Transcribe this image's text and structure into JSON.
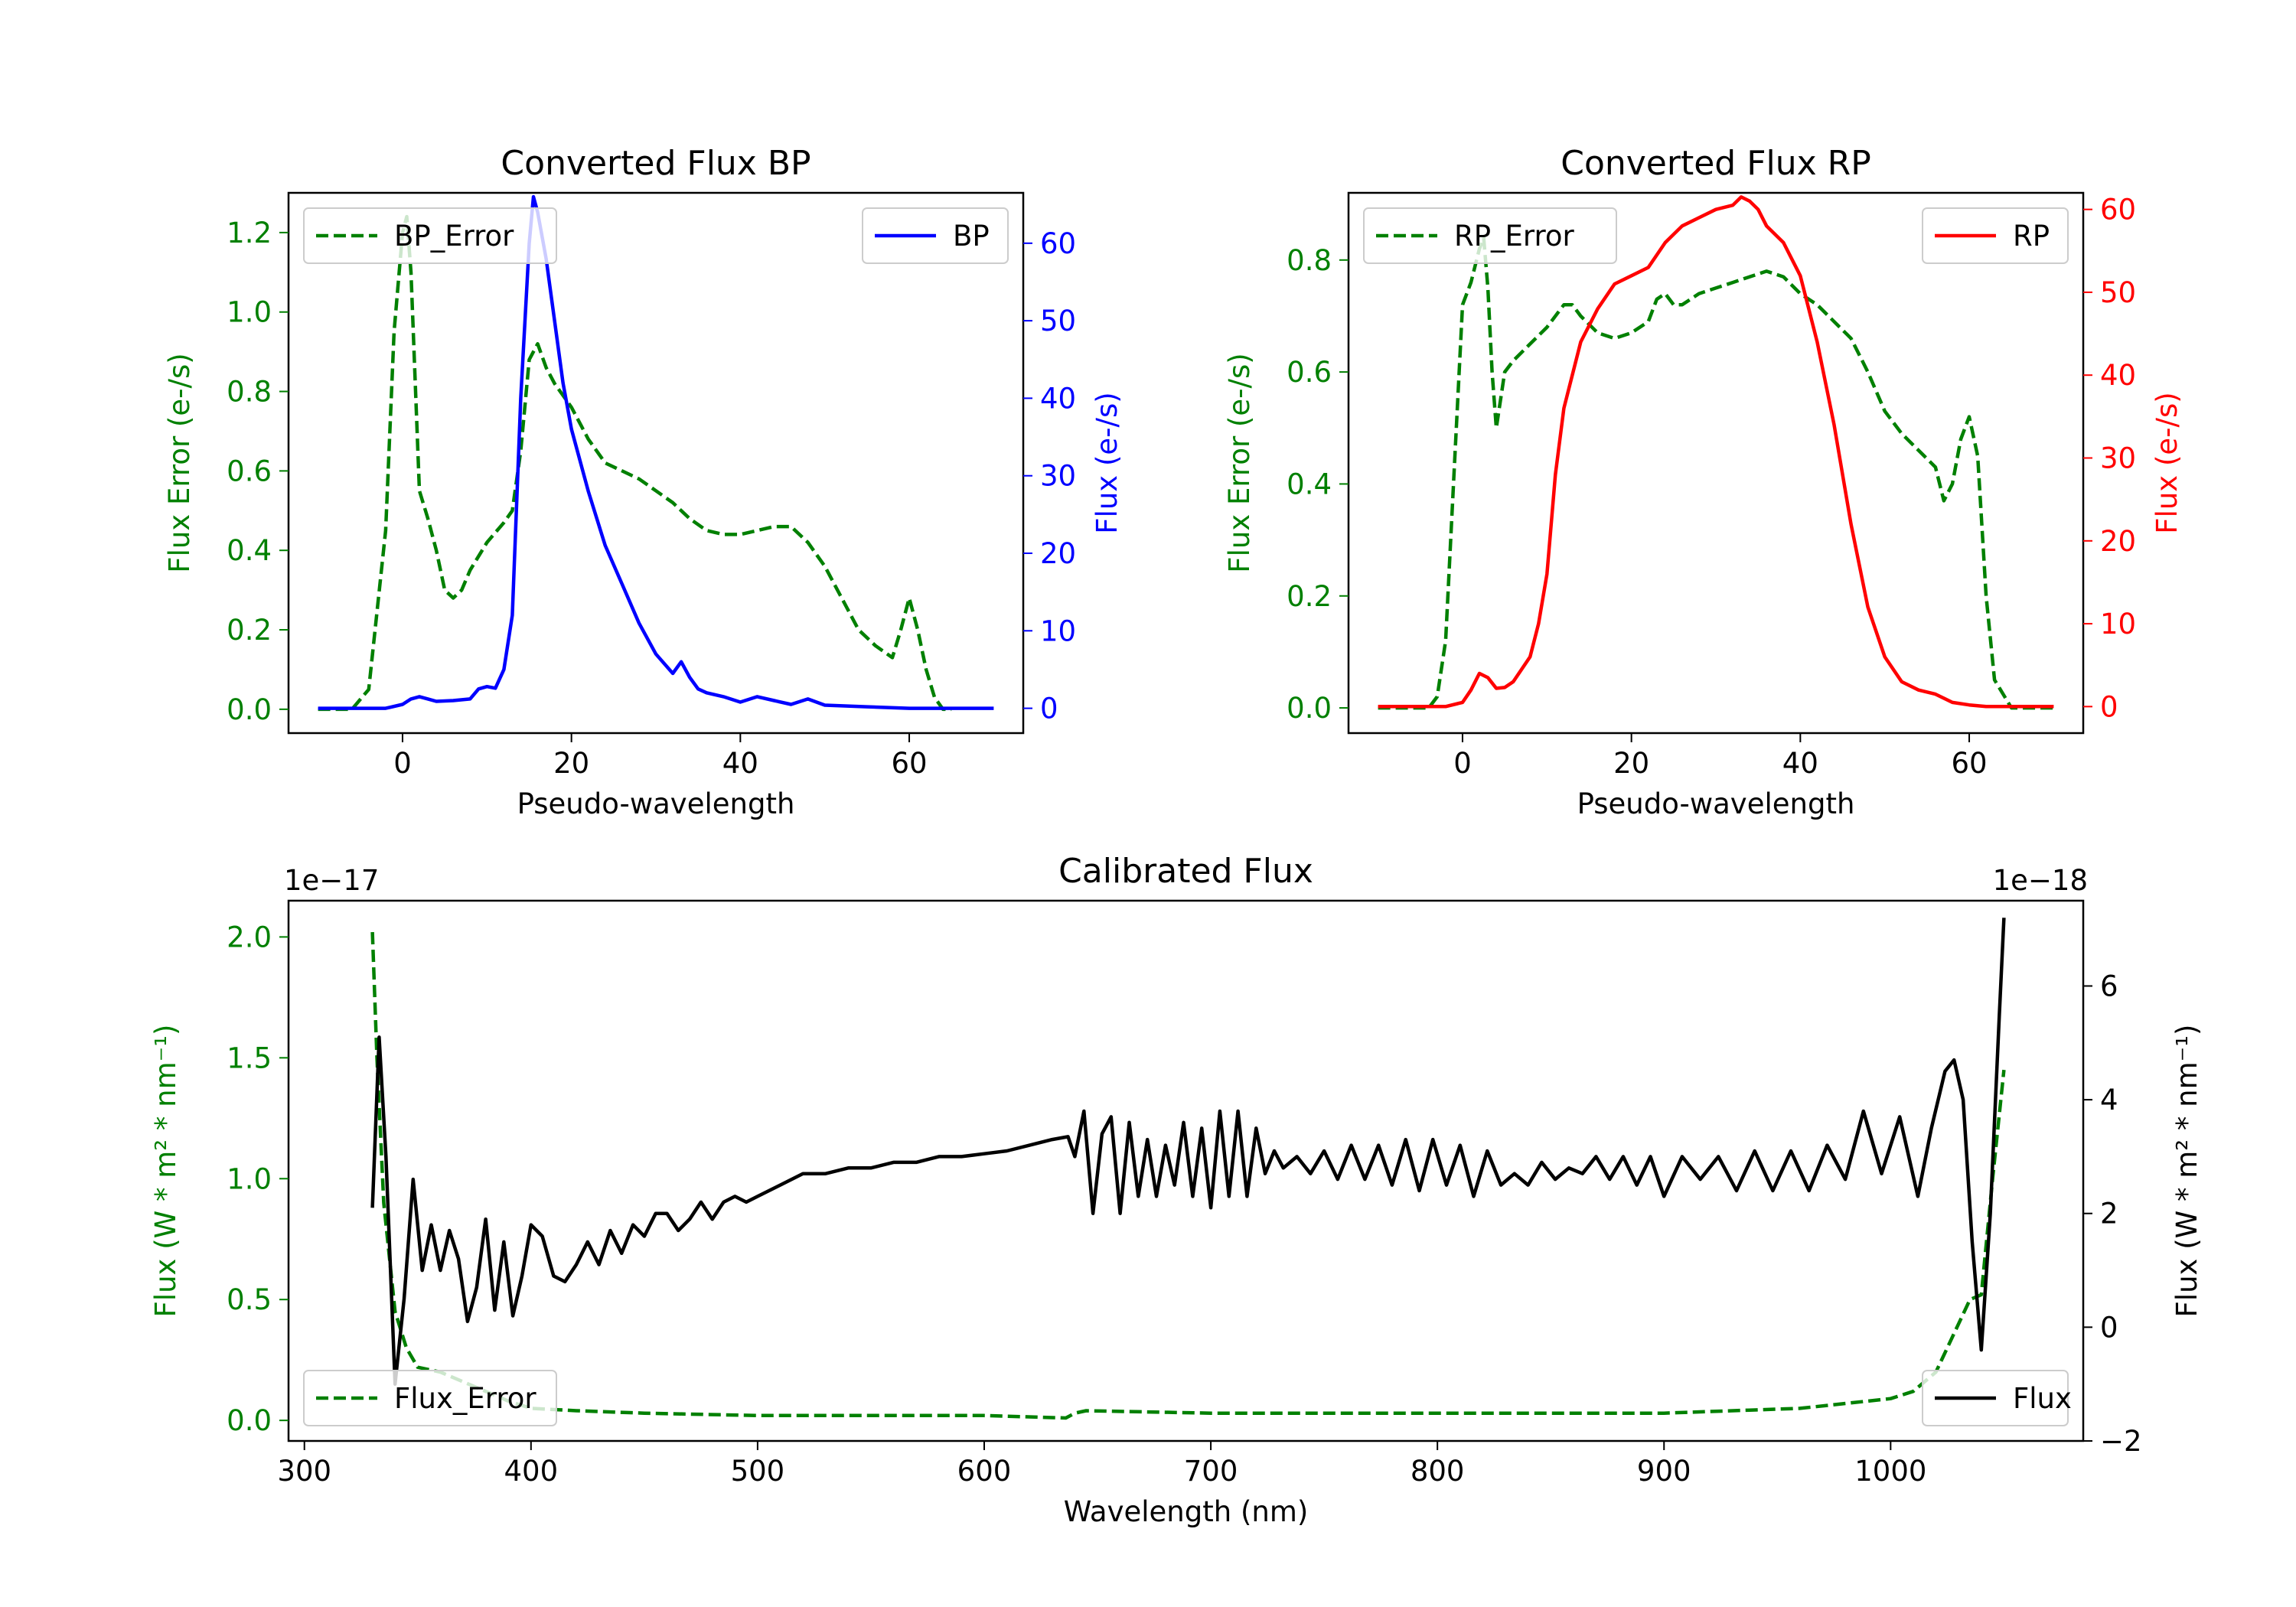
{
  "chart_data": [
    {
      "id": "bp",
      "type": "line",
      "title": "Converted Flux BP",
      "xlabel": "Pseudo-wavelength",
      "ylabel_left": "Flux Error (e-/s)",
      "ylabel_right": "Flux (e-/s)",
      "xlim": [
        -13.5,
        73.5
      ],
      "ylim_left": [
        -0.06,
        1.3
      ],
      "ylim_right": [
        -3.2,
        66.5
      ],
      "xticks": [
        0,
        20,
        40,
        60
      ],
      "yticks_left": [
        0.0,
        0.2,
        0.4,
        0.6,
        0.8,
        1.0,
        1.2
      ],
      "yticks_left_labels": [
        "0.0",
        "0.2",
        "0.4",
        "0.6",
        "0.8",
        "1.0",
        "1.2"
      ],
      "yticks_right": [
        0,
        10,
        20,
        30,
        40,
        50,
        60
      ],
      "colors": {
        "left_axis": "#008000",
        "right_axis": "#0000ff"
      },
      "legend_left": "upper-left",
      "legend_right": "upper-right",
      "series": [
        {
          "name": "BP_Error",
          "axis": "left",
          "color": "#008000",
          "style": "dashed",
          "x": [
            -10,
            -6,
            -4,
            -2,
            -1,
            0,
            0.5,
            1,
            2,
            3,
            4,
            5,
            6,
            7,
            8,
            10,
            12,
            13,
            14,
            15,
            16,
            17,
            18,
            20,
            22,
            24,
            26,
            28,
            30,
            32,
            34,
            36,
            38,
            40,
            42,
            44,
            46,
            48,
            50,
            52,
            54,
            56,
            58,
            59,
            60,
            61,
            62,
            63,
            64,
            65
          ],
          "y": [
            0.0,
            0.0,
            0.05,
            0.45,
            0.95,
            1.2,
            1.24,
            1.1,
            0.55,
            0.48,
            0.4,
            0.3,
            0.28,
            0.3,
            0.35,
            0.42,
            0.47,
            0.5,
            0.65,
            0.88,
            0.92,
            0.86,
            0.82,
            0.76,
            0.68,
            0.62,
            0.6,
            0.58,
            0.55,
            0.52,
            0.48,
            0.45,
            0.44,
            0.44,
            0.45,
            0.46,
            0.46,
            0.42,
            0.36,
            0.28,
            0.2,
            0.16,
            0.13,
            0.2,
            0.28,
            0.2,
            0.1,
            0.03,
            0.0,
            0.0
          ]
        },
        {
          "name": "BP",
          "axis": "right",
          "color": "#0000ff",
          "style": "solid",
          "x": [
            -10,
            -4,
            -2,
            0,
            1,
            2,
            3,
            4,
            6,
            8,
            9,
            10,
            11,
            12,
            13,
            14,
            15,
            15.5,
            16,
            17,
            18,
            19,
            20,
            22,
            24,
            26,
            28,
            30,
            32,
            33,
            34,
            35,
            36,
            38,
            40,
            42,
            44,
            46,
            48,
            50,
            55,
            60,
            65,
            70
          ],
          "y": [
            0,
            0,
            0,
            0.5,
            1.2,
            1.5,
            1.2,
            0.9,
            1.0,
            1.2,
            2.5,
            2.8,
            2.6,
            5.0,
            12.0,
            40.0,
            60.0,
            66.0,
            64.0,
            58.0,
            50.0,
            42.0,
            36.0,
            28.0,
            21.0,
            16.0,
            11.0,
            7.0,
            4.5,
            6.0,
            4.0,
            2.5,
            2.0,
            1.5,
            0.8,
            1.5,
            1.0,
            0.5,
            1.2,
            0.4,
            0.2,
            0,
            0,
            0
          ]
        }
      ]
    },
    {
      "id": "rp",
      "type": "line",
      "title": "Converted Flux RP",
      "xlabel": "Pseudo-wavelength",
      "ylabel_left": "Flux Error (e-/s)",
      "ylabel_right": "Flux (e-/s)",
      "xlim": [
        -13.5,
        73.5
      ],
      "ylim_left": [
        -0.045,
        0.92
      ],
      "ylim_right": [
        -3.2,
        62.0
      ],
      "xticks": [
        0,
        20,
        40,
        60
      ],
      "yticks_left": [
        0.0,
        0.2,
        0.4,
        0.6,
        0.8
      ],
      "yticks_left_labels": [
        "0.0",
        "0.2",
        "0.4",
        "0.6",
        "0.8"
      ],
      "yticks_right": [
        0,
        10,
        20,
        30,
        40,
        50,
        60
      ],
      "colors": {
        "left_axis": "#008000",
        "right_axis": "#ff0000"
      },
      "legend_left": "upper-left",
      "legend_right": "upper-right",
      "series": [
        {
          "name": "RP_Error",
          "axis": "left",
          "color": "#008000",
          "style": "dashed",
          "x": [
            -10,
            -4,
            -3,
            -2,
            -1,
            0,
            1,
            2,
            2.5,
            3,
            3.5,
            4,
            5,
            6,
            8,
            10,
            12,
            13,
            14,
            16,
            18,
            20,
            22,
            23,
            24,
            25,
            26,
            28,
            30,
            32,
            34,
            36,
            38,
            40,
            42,
            44,
            46,
            48,
            50,
            52,
            54,
            56,
            57,
            58,
            59,
            60,
            61,
            62,
            63,
            65,
            70
          ],
          "y": [
            0.0,
            0.0,
            0.02,
            0.12,
            0.42,
            0.72,
            0.76,
            0.82,
            0.84,
            0.75,
            0.6,
            0.5,
            0.6,
            0.62,
            0.65,
            0.68,
            0.72,
            0.72,
            0.7,
            0.67,
            0.66,
            0.67,
            0.69,
            0.73,
            0.74,
            0.72,
            0.72,
            0.74,
            0.75,
            0.76,
            0.77,
            0.78,
            0.77,
            0.74,
            0.72,
            0.69,
            0.66,
            0.6,
            0.53,
            0.49,
            0.46,
            0.43,
            0.37,
            0.4,
            0.48,
            0.52,
            0.45,
            0.2,
            0.05,
            0.0,
            0.0
          ]
        },
        {
          "name": "RP",
          "axis": "right",
          "color": "#ff0000",
          "style": "solid",
          "x": [
            -10,
            -4,
            -2,
            0,
            1,
            2,
            3,
            4,
            5,
            6,
            8,
            9,
            10,
            11,
            12,
            13,
            14,
            16,
            18,
            20,
            22,
            24,
            26,
            28,
            30,
            32,
            33,
            34,
            35,
            36,
            38,
            40,
            42,
            44,
            46,
            48,
            50,
            52,
            54,
            56,
            58,
            60,
            62,
            65,
            70
          ],
          "y": [
            0,
            0,
            0,
            0.5,
            2.0,
            4.0,
            3.5,
            2.2,
            2.3,
            3.0,
            6.0,
            10.0,
            16.0,
            28.0,
            36.0,
            40.0,
            44.0,
            48.0,
            51.0,
            52.0,
            53.0,
            56.0,
            58.0,
            59.0,
            60.0,
            60.5,
            61.5,
            61.0,
            60.0,
            58.0,
            56.0,
            52.0,
            44.0,
            34.0,
            22.0,
            12.0,
            6.0,
            3.0,
            2.0,
            1.5,
            0.5,
            0.2,
            0,
            0,
            0
          ]
        }
      ]
    },
    {
      "id": "cal",
      "type": "line",
      "title": "Calibrated Flux",
      "xlabel": "Wavelength (nm)",
      "ylabel_left": "Flux (W * m² * nm⁻¹)",
      "ylabel_right": "Flux (W * m² * nm⁻¹)",
      "offset_left": "1e−17",
      "offset_right": "1e−18",
      "xlim": [
        293,
        1085
      ],
      "ylim_left": [
        -0.085,
        2.15
      ],
      "ylim_right": [
        -2.0,
        7.5
      ],
      "xticks": [
        300,
        400,
        500,
        600,
        700,
        800,
        900,
        1000
      ],
      "yticks_left": [
        0.0,
        0.5,
        1.0,
        1.5,
        2.0
      ],
      "yticks_left_labels": [
        "0.0",
        "0.5",
        "1.0",
        "1.5",
        "2.0"
      ],
      "yticks_right": [
        -2,
        0,
        2,
        4,
        6
      ],
      "yticks_right_labels": [
        "−2",
        "0",
        "2",
        "4",
        "6"
      ],
      "colors": {
        "left_axis": "#008000",
        "right_axis": "#000000"
      },
      "legend_left": "lower-left",
      "legend_right": "lower-right",
      "series": [
        {
          "name": "Flux_Error",
          "axis": "left",
          "color": "#008000",
          "style": "dashed",
          "x": [
            330,
            332,
            335,
            340,
            345,
            350,
            360,
            370,
            380,
            390,
            400,
            420,
            450,
            500,
            550,
            600,
            636,
            640,
            645,
            700,
            800,
            900,
            960,
            1000,
            1010,
            1020,
            1030,
            1035,
            1040,
            1045,
            1050
          ],
          "y": [
            2.02,
            1.5,
            0.9,
            0.45,
            0.3,
            0.22,
            0.2,
            0.16,
            0.12,
            0.08,
            0.05,
            0.04,
            0.03,
            0.02,
            0.02,
            0.02,
            0.01,
            0.03,
            0.04,
            0.03,
            0.03,
            0.03,
            0.05,
            0.09,
            0.12,
            0.2,
            0.4,
            0.5,
            0.52,
            1.0,
            1.45
          ]
        },
        {
          "name": "Flux",
          "axis": "right",
          "color": "#000000",
          "style": "solid",
          "x": [
            330,
            333,
            336,
            340,
            344,
            348,
            352,
            356,
            360,
            364,
            368,
            372,
            376,
            380,
            384,
            388,
            392,
            396,
            400,
            405,
            410,
            415,
            420,
            425,
            430,
            435,
            440,
            445,
            450,
            455,
            460,
            465,
            470,
            475,
            480,
            485,
            490,
            495,
            500,
            510,
            520,
            530,
            540,
            550,
            560,
            570,
            580,
            590,
            600,
            610,
            620,
            630,
            637,
            640,
            644,
            648,
            652,
            656,
            660,
            664,
            668,
            672,
            676,
            680,
            684,
            688,
            692,
            696,
            700,
            704,
            708,
            712,
            716,
            720,
            724,
            728,
            732,
            738,
            744,
            750,
            756,
            762,
            768,
            774,
            780,
            786,
            792,
            798,
            804,
            810,
            816,
            822,
            828,
            834,
            840,
            846,
            852,
            858,
            864,
            870,
            876,
            882,
            888,
            894,
            900,
            908,
            916,
            924,
            932,
            940,
            948,
            956,
            964,
            972,
            980,
            988,
            996,
            1004,
            1012,
            1018,
            1024,
            1028,
            1032,
            1036,
            1040,
            1044,
            1048,
            1050
          ],
          "y": [
            2.1,
            5.1,
            3.0,
            -1.0,
            0.5,
            2.6,
            1.0,
            1.8,
            1.0,
            1.7,
            1.2,
            0.1,
            0.7,
            1.9,
            0.3,
            1.5,
            0.2,
            0.9,
            1.8,
            1.6,
            0.9,
            0.8,
            1.1,
            1.5,
            1.1,
            1.7,
            1.3,
            1.8,
            1.6,
            2.0,
            2.0,
            1.7,
            1.9,
            2.2,
            1.9,
            2.2,
            2.3,
            2.2,
            2.3,
            2.5,
            2.7,
            2.7,
            2.8,
            2.8,
            2.9,
            2.9,
            3.0,
            3.0,
            3.05,
            3.1,
            3.2,
            3.3,
            3.35,
            3.0,
            3.8,
            2.0,
            3.4,
            3.7,
            2.0,
            3.6,
            2.3,
            3.3,
            2.3,
            3.2,
            2.5,
            3.6,
            2.3,
            3.5,
            2.1,
            3.8,
            2.3,
            3.8,
            2.3,
            3.5,
            2.7,
            3.1,
            2.8,
            3.0,
            2.7,
            3.1,
            2.6,
            3.2,
            2.6,
            3.2,
            2.5,
            3.3,
            2.4,
            3.3,
            2.5,
            3.2,
            2.3,
            3.1,
            2.5,
            2.7,
            2.5,
            2.9,
            2.6,
            2.8,
            2.7,
            3.0,
            2.6,
            3.0,
            2.5,
            3.0,
            2.3,
            3.0,
            2.6,
            3.0,
            2.4,
            3.1,
            2.4,
            3.1,
            2.4,
            3.2,
            2.6,
            3.8,
            2.7,
            3.7,
            2.3,
            3.5,
            4.5,
            4.7,
            4.0,
            1.5,
            -0.4,
            2.0,
            5.5,
            7.2
          ]
        }
      ]
    }
  ]
}
